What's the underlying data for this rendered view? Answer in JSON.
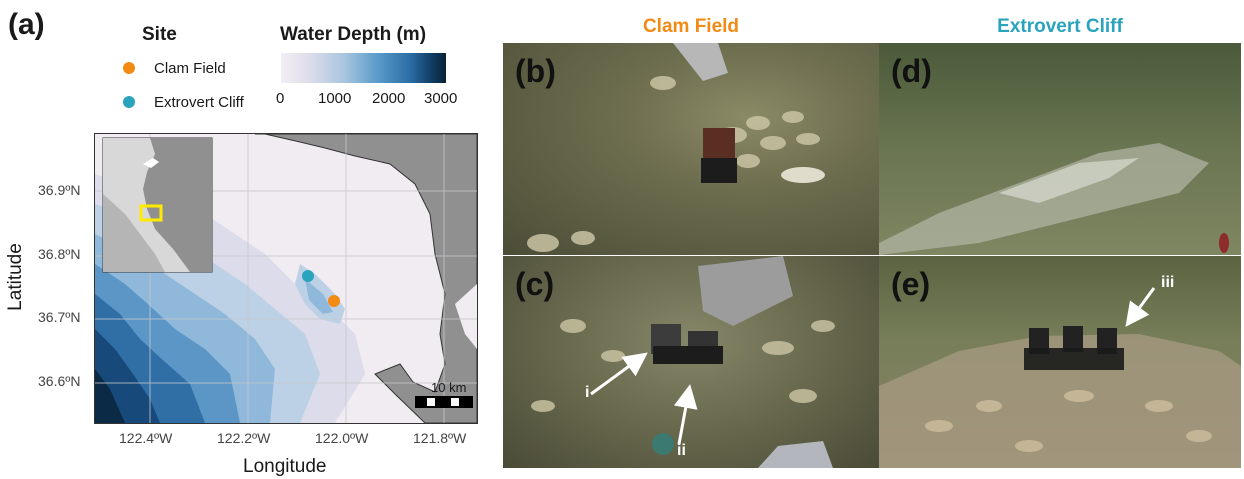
{
  "panels": {
    "a": "(a)",
    "b": "(b)",
    "c": "(c)",
    "d": "(d)",
    "e": "(e)"
  },
  "legend": {
    "site_title": "Site",
    "sites": [
      {
        "name": "Clam Field",
        "color": "#f28a14"
      },
      {
        "name": "Extrovert Cliff",
        "color": "#2aa3bd"
      }
    ],
    "depth_title": "Water Depth (m)",
    "depth_ticks": [
      "0",
      "1000",
      "2000",
      "3000"
    ]
  },
  "map": {
    "lat_ticks": [
      "36.9ºN",
      "36.8ºN",
      "36.7ºN",
      "36.6ºN"
    ],
    "lon_ticks": [
      "122.4ºW",
      "122.2ºW",
      "122.0ºW",
      "121.8ºW"
    ],
    "xlabel": "Longitude",
    "ylabel": "Latitude",
    "scalebar": "10 km",
    "colors": {
      "land": "#909090",
      "shallow": "#f1ebf2",
      "deep": "#0b2a45"
    }
  },
  "columns": {
    "left": {
      "title": "Clam Field",
      "color": "#f28a14"
    },
    "right": {
      "title": "Extrovert Cliff",
      "color": "#2aa3bd"
    }
  },
  "pointers": {
    "i": "i",
    "ii": "ii",
    "iii": "iii"
  }
}
